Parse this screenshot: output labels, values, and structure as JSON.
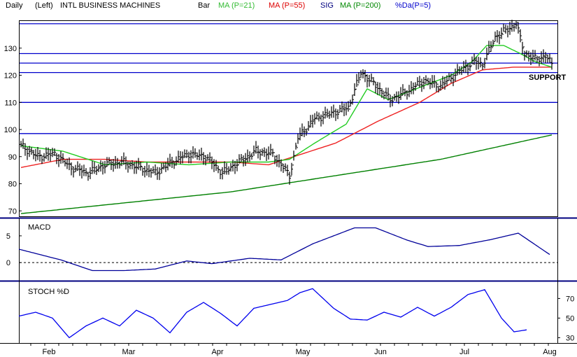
{
  "header": {
    "period": "Daily",
    "axis_side": "(Left)",
    "symbol": "INTL BUSINESS MACHINES",
    "chart_style": "Bar",
    "ma21_label": "MA (P=21)",
    "ma55_label": "MA (P=55)",
    "sig_label": "SIG",
    "ma200_label": "MA (P=200)",
    "da_label": "%Da(P=5)"
  },
  "colors": {
    "frame": "#000000",
    "bars": "#000000",
    "ma21": "#22cc22",
    "ma55": "#ee2222",
    "ma200": "#008000",
    "support_lines": "#0000cc",
    "macd": "#000099",
    "stoch": "#0000ee",
    "header_ma21": "#33bb33",
    "header_ma55": "#dd0000",
    "header_sig": "#000080",
    "header_ma200": "#008800",
    "header_da": "#0000cc"
  },
  "price_axis": {
    "ticks": [
      "70",
      "80",
      "90",
      "100",
      "110",
      "120",
      "130"
    ]
  },
  "support_label": "SUPPORT",
  "macd_panel": {
    "title": "MACD",
    "ticks": [
      "5",
      "0"
    ]
  },
  "stoch_panel": {
    "title": "STOCH %D",
    "ticks": [
      "70",
      "50",
      "30"
    ]
  },
  "months": [
    "Feb",
    "Mar",
    "Apr",
    "May",
    "Jun",
    "Jul",
    "Aug"
  ],
  "chart_data": {
    "type": "bar",
    "title": "INTL BUSINESS MACHINES",
    "price_ylim": [
      68,
      140
    ],
    "support_levels": [
      139,
      128,
      124.5,
      121,
      110,
      98.5
    ],
    "price_keypoints": [
      [
        0,
        94
      ],
      [
        8,
        90
      ],
      [
        16,
        91
      ],
      [
        24,
        86
      ],
      [
        32,
        84
      ],
      [
        40,
        87
      ],
      [
        48,
        88
      ],
      [
        56,
        86
      ],
      [
        64,
        84
      ],
      [
        72,
        88
      ],
      [
        80,
        91
      ],
      [
        88,
        90
      ],
      [
        96,
        84
      ],
      [
        104,
        88
      ],
      [
        112,
        92
      ],
      [
        120,
        91
      ],
      [
        128,
        83
      ],
      [
        132,
        97
      ],
      [
        140,
        104
      ],
      [
        148,
        106
      ],
      [
        156,
        108
      ],
      [
        162,
        121
      ],
      [
        168,
        117
      ],
      [
        176,
        111
      ],
      [
        184,
        114
      ],
      [
        192,
        118
      ],
      [
        200,
        116
      ],
      [
        208,
        121
      ],
      [
        212,
        123
      ],
      [
        216,
        125
      ],
      [
        220,
        124
      ],
      [
        226,
        134
      ],
      [
        232,
        137
      ],
      [
        236,
        139
      ],
      [
        240,
        128
      ],
      [
        245,
        126
      ],
      [
        250,
        127
      ],
      [
        253,
        124
      ]
    ],
    "ma21": [
      [
        0,
        94
      ],
      [
        20,
        92
      ],
      [
        40,
        87
      ],
      [
        60,
        88
      ],
      [
        80,
        87
      ],
      [
        100,
        88
      ],
      [
        118,
        88
      ],
      [
        128,
        89
      ],
      [
        140,
        95
      ],
      [
        155,
        102
      ],
      [
        165,
        115
      ],
      [
        175,
        111
      ],
      [
        185,
        114
      ],
      [
        195,
        117
      ],
      [
        205,
        120
      ],
      [
        215,
        125
      ],
      [
        222,
        131
      ],
      [
        230,
        131
      ],
      [
        238,
        128
      ],
      [
        245,
        125
      ],
      [
        253,
        123
      ]
    ],
    "ma55": [
      [
        0,
        86
      ],
      [
        20,
        89
      ],
      [
        40,
        89
      ],
      [
        60,
        88
      ],
      [
        80,
        88
      ],
      [
        100,
        88
      ],
      [
        118,
        87
      ],
      [
        130,
        90
      ],
      [
        150,
        95
      ],
      [
        170,
        103
      ],
      [
        190,
        110
      ],
      [
        205,
        117
      ],
      [
        220,
        122
      ],
      [
        235,
        123
      ],
      [
        253,
        123
      ]
    ],
    "ma200": [
      [
        0,
        69
      ],
      [
        50,
        73
      ],
      [
        100,
        77
      ],
      [
        150,
        83
      ],
      [
        200,
        89
      ],
      [
        253,
        98
      ]
    ],
    "macd_ylim": [
      -3,
      8
    ],
    "macd": [
      [
        0,
        2.5
      ],
      [
        20,
        0.5
      ],
      [
        35,
        -1.5
      ],
      [
        50,
        -1.5
      ],
      [
        65,
        -1.2
      ],
      [
        80,
        0.3
      ],
      [
        92,
        -0.2
      ],
      [
        110,
        0.8
      ],
      [
        125,
        0.5
      ],
      [
        140,
        3.5
      ],
      [
        160,
        6.5
      ],
      [
        170,
        6.5
      ],
      [
        185,
        4.2
      ],
      [
        195,
        3.0
      ],
      [
        210,
        3.2
      ],
      [
        225,
        4.3
      ],
      [
        238,
        5.5
      ],
      [
        253,
        1.5
      ]
    ],
    "stoch_ylim": [
      26,
      86
    ],
    "stoch": [
      [
        0,
        52
      ],
      [
        8,
        56
      ],
      [
        16,
        50
      ],
      [
        24,
        30
      ],
      [
        32,
        42
      ],
      [
        40,
        50
      ],
      [
        48,
        42
      ],
      [
        56,
        58
      ],
      [
        64,
        50
      ],
      [
        72,
        35
      ],
      [
        80,
        56
      ],
      [
        88,
        66
      ],
      [
        96,
        55
      ],
      [
        104,
        42
      ],
      [
        112,
        60
      ],
      [
        120,
        64
      ],
      [
        128,
        68
      ],
      [
        134,
        76
      ],
      [
        140,
        80
      ],
      [
        150,
        60
      ],
      [
        158,
        49
      ],
      [
        166,
        48
      ],
      [
        174,
        56
      ],
      [
        182,
        51
      ],
      [
        190,
        61
      ],
      [
        198,
        52
      ],
      [
        206,
        61
      ],
      [
        214,
        74
      ],
      [
        222,
        79
      ],
      [
        230,
        50
      ],
      [
        236,
        36
      ],
      [
        242,
        38
      ]
    ]
  }
}
